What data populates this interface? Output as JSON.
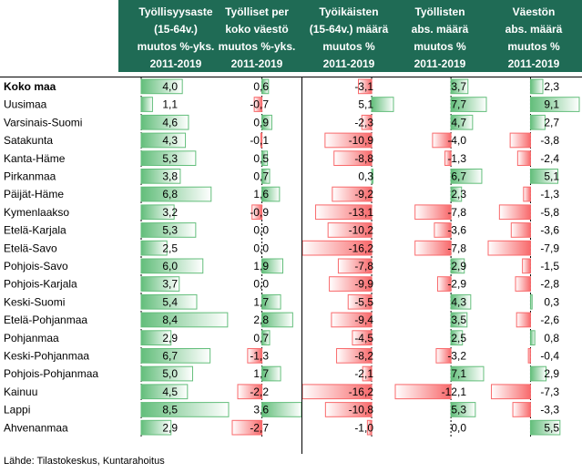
{
  "chart_data": {
    "type": "table",
    "columns": [
      {
        "header": [
          "Työllisyysaste",
          "(15-64v.)",
          "muutos %-yks.",
          "2011-2019"
        ],
        "values": [
          4.0,
          1.1,
          4.6,
          4.3,
          5.3,
          3.8,
          6.8,
          3.2,
          5.3,
          2.5,
          6.0,
          3.7,
          5.4,
          8.4,
          2.9,
          6.7,
          5.0,
          4.5,
          8.5,
          2.9
        ]
      },
      {
        "header": [
          "Työlliset per",
          "koko väestö",
          "muutos %-yks.",
          "2011-2019"
        ],
        "values": [
          0.6,
          -0.7,
          0.9,
          -0.1,
          0.5,
          0.7,
          1.6,
          -0.9,
          0.0,
          0.0,
          1.9,
          0.0,
          1.7,
          2.8,
          0.7,
          -1.3,
          1.7,
          -2.2,
          3.6,
          -2.7
        ]
      },
      {
        "header": [
          "Työikäisten",
          "(15-64v.) määrä",
          "muutos %",
          "2011-2019"
        ],
        "values": [
          -3.1,
          5.1,
          -2.3,
          -10.9,
          -8.8,
          0.3,
          -9.2,
          -13.1,
          -10.2,
          -16.2,
          -7.8,
          -9.9,
          -5.5,
          -9.4,
          -4.5,
          -8.2,
          -2.1,
          -16.2,
          -10.8,
          -1.0
        ]
      },
      {
        "header": [
          "Työllisten",
          "abs. määrä",
          "muutos %",
          "2011-2019"
        ],
        "values": [
          3.7,
          7.7,
          4.7,
          -4.0,
          -1.3,
          6.7,
          2.3,
          -7.8,
          -3.6,
          -7.8,
          2.9,
          -2.9,
          4.3,
          3.5,
          2.5,
          -3.2,
          7.1,
          -12.1,
          5.3,
          0.0
        ]
      },
      {
        "header": [
          "Väestön",
          "abs. määrä",
          "muutos %",
          "2011-2019"
        ],
        "values": [
          2.3,
          9.1,
          2.7,
          -3.8,
          -2.4,
          5.1,
          -1.3,
          -5.8,
          -3.6,
          -7.9,
          -1.5,
          -2.8,
          0.3,
          -2.6,
          0.8,
          -0.4,
          2.9,
          -7.3,
          -3.3,
          5.5
        ]
      }
    ],
    "rows": [
      "Koko maa",
      "Uusimaa",
      "Varsinais-Suomi",
      "Satakunta",
      "Kanta-Häme",
      "Pirkanmaa",
      "Päijät-Häme",
      "Kymenlaakso",
      "Etelä-Karjala",
      "Etelä-Savo",
      "Pohjois-Savo",
      "Pohjois-Karjala",
      "Keski-Suomi",
      "Etelä-Pohjanmaa",
      "Pohjanmaa",
      "Keski-Pohjanmaa",
      "Pohjois-Pohjanmaa",
      "Kainuu",
      "Lappi",
      "Ahvenanmaa"
    ],
    "bold_row": "Koko maa",
    "colors": {
      "header_bg": "#1f6b55",
      "positive_bar": "#63be7b",
      "negative_bar": "#f8696b",
      "grid_line": "#000000"
    }
  },
  "source": "Lähde: Tilastokeskus, Kuntarahoitus"
}
